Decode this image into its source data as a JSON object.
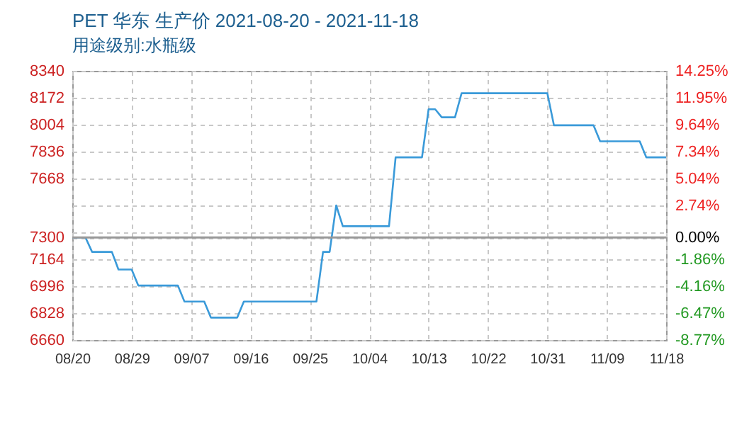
{
  "chart_data": {
    "type": "line",
    "title": "PET 华东 生产价 2021-08-20 - 2021-11-18",
    "subtitle": "用途级别:水瓶级",
    "x": [
      "2021-08-20",
      "2021-08-22",
      "2021-08-23",
      "2021-08-26",
      "2021-08-27",
      "2021-08-29",
      "2021-08-30",
      "2021-09-05",
      "2021-09-06",
      "2021-09-09",
      "2021-09-10",
      "2021-09-14",
      "2021-09-15",
      "2021-09-26",
      "2021-09-27",
      "2021-09-28",
      "2021-09-29",
      "2021-09-30",
      "2021-10-07",
      "2021-10-08",
      "2021-10-12",
      "2021-10-13",
      "2021-10-14",
      "2021-10-15",
      "2021-10-17",
      "2021-10-18",
      "2021-10-31",
      "2021-11-01",
      "2021-11-07",
      "2021-11-08",
      "2021-11-14",
      "2021-11-15",
      "2021-11-18"
    ],
    "series": [
      {
        "color": "#3a9ad9",
        "values": [
          7300,
          7300,
          7210,
          7210,
          7100,
          7100,
          7000,
          7000,
          6900,
          6900,
          6800,
          6800,
          6900,
          6900,
          7210,
          7210,
          7500,
          7370,
          7370,
          7800,
          7800,
          8100,
          8100,
          8050,
          8050,
          8200,
          8200,
          8000,
          8000,
          7900,
          7900,
          7800,
          7800
        ]
      }
    ],
    "xlim": [
      "2021-08-20",
      "2021-11-18"
    ],
    "xticks": [
      {
        "value": "2021-08-20",
        "label": "08/20"
      },
      {
        "value": "2021-08-29",
        "label": "08/29"
      },
      {
        "value": "2021-09-07",
        "label": "09/07"
      },
      {
        "value": "2021-09-16",
        "label": "09/16"
      },
      {
        "value": "2021-09-25",
        "label": "09/25"
      },
      {
        "value": "2021-10-04",
        "label": "10/04"
      },
      {
        "value": "2021-10-13",
        "label": "10/13"
      },
      {
        "value": "2021-10-22",
        "label": "10/22"
      },
      {
        "value": "2021-10-31",
        "label": "10/31"
      },
      {
        "value": "2021-11-09",
        "label": "11/09"
      },
      {
        "value": "2021-11-18",
        "label": "11/18"
      }
    ],
    "ylim": [
      6660,
      8340
    ],
    "yticks": [
      6660,
      6828,
      6996,
      7164,
      7300,
      {
        "value": 7332,
        "label": null
      },
      {
        "value": 7500,
        "label": null
      },
      7668,
      7836,
      8004,
      8172,
      8340
    ],
    "y2lim": [
      -8.77,
      14.25
    ],
    "y2ticks": [
      {
        "value": -8.77,
        "label": "-8.77%"
      },
      {
        "value": -6.47,
        "label": "-6.47%"
      },
      {
        "value": -4.16,
        "label": "-4.16%"
      },
      {
        "value": -1.86,
        "label": "-1.86%"
      },
      {
        "value": 0,
        "label": "0.00%"
      },
      {
        "value": 2.74,
        "label": "2.74%"
      },
      {
        "value": 5.04,
        "label": "5.04%"
      },
      {
        "value": 7.34,
        "label": "7.34%"
      },
      {
        "value": 9.64,
        "label": "9.64%"
      },
      {
        "value": 11.95,
        "label": "11.95%"
      },
      {
        "value": 14.25,
        "label": "14.25%"
      }
    ],
    "ref_lines": [
      {
        "axis": "y2",
        "value": 0,
        "color": "#999999"
      }
    ],
    "grid": true,
    "marker": "none",
    "line_style": "solid"
  }
}
